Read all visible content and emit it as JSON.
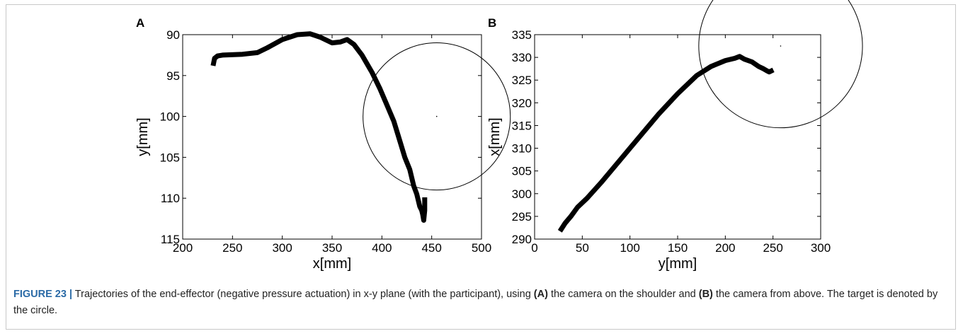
{
  "caption": {
    "figure_label": "FIGURE 23 |",
    "part1": " Trajectories of the end-effector (negative pressure actuation) in x-y plane (with the participant), using ",
    "ref_a": "(A)",
    "part2": " the camera on the shoulder and ",
    "ref_b": "(B)",
    "part3": " the camera from above. The target is denoted by the circle."
  },
  "chart_data": [
    {
      "panel_label": "A",
      "type": "line",
      "xlabel": "x[mm]",
      "ylabel": "y[mm]",
      "xlim": [
        200,
        500
      ],
      "ylim": [
        90,
        115
      ],
      "y_inverted": true,
      "grid": false,
      "xticks": [
        "200",
        "250",
        "300",
        "350",
        "400",
        "450",
        "500"
      ],
      "yticks": [
        "90",
        "95",
        "100",
        "105",
        "110",
        "115"
      ],
      "series": [
        {
          "x": [
            231,
            232,
            235,
            240,
            260,
            275,
            285,
            300,
            315,
            328,
            338,
            350,
            358,
            365,
            372,
            380,
            390,
            398,
            405,
            412,
            418,
            423,
            428,
            432,
            435,
            437,
            438,
            440,
            441,
            442,
            443,
            443
          ],
          "y": [
            93.5,
            92.9,
            92.6,
            92.5,
            92.4,
            92.2,
            91.6,
            90.6,
            90.0,
            89.9,
            90.3,
            91.0,
            90.9,
            90.6,
            91.2,
            92.5,
            94.6,
            96.6,
            98.6,
            100.6,
            103.0,
            105.0,
            106.5,
            108.5,
            109.5,
            110.5,
            111.0,
            111.5,
            112.0,
            112.7,
            111.5,
            110.2
          ]
        }
      ],
      "target": {
        "x": 455,
        "y": 100,
        "radius": 9
      }
    },
    {
      "panel_label": "B",
      "type": "line",
      "xlabel": "y[mm]",
      "ylabel": "x[mm]",
      "xlim": [
        0,
        300
      ],
      "ylim": [
        290,
        335
      ],
      "grid": false,
      "xticks": [
        "0",
        "50",
        "100",
        "150",
        "200",
        "250",
        "300"
      ],
      "yticks": [
        "290",
        "295",
        "300",
        "305",
        "310",
        "315",
        "320",
        "325",
        "330",
        "335"
      ],
      "series": [
        {
          "x": [
            28,
            32,
            38,
            45,
            55,
            70,
            90,
            110,
            130,
            150,
            170,
            185,
            200,
            210,
            215,
            220,
            228,
            235,
            240,
            244,
            246,
            248
          ],
          "y": [
            292.2,
            293.5,
            295.0,
            297.0,
            299.0,
            302.5,
            307.5,
            312.5,
            317.5,
            322.0,
            326.0,
            328.0,
            329.3,
            329.8,
            330.2,
            329.6,
            329.0,
            328.0,
            327.5,
            327.0,
            326.8,
            327.0
          ]
        }
      ],
      "target": {
        "x": 258,
        "y": 332.5,
        "radius": 18
      }
    }
  ]
}
